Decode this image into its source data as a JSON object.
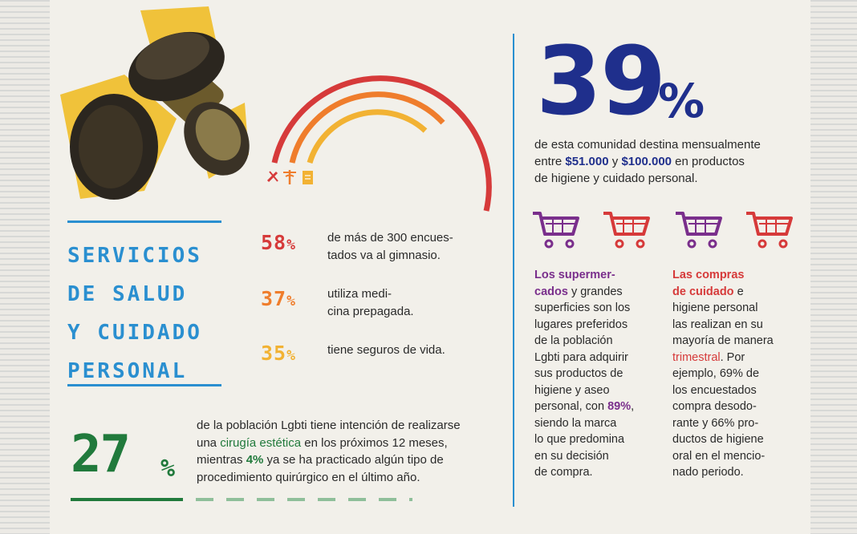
{
  "left": {
    "heading_lines": [
      "SERVICIOS",
      "DE SALUD",
      "Y CUIDADO",
      "PERSONAL"
    ],
    "stats": [
      {
        "pct": "58",
        "sign": "%",
        "line1": "de más de 300 encues-",
        "line2": "tados va al gimnasio.",
        "color": "#d63a3a"
      },
      {
        "pct": "37",
        "sign": "%",
        "line1": "utiliza medi-",
        "line2": "cina prepagada.",
        "color": "#ef7d2c"
      },
      {
        "pct": "35",
        "sign": "%",
        "line1": "tiene seguros de vida.",
        "line2": "",
        "color": "#f2b233"
      }
    ],
    "arc_colors": [
      "#d63a3a",
      "#ef7d2c",
      "#f2b233"
    ],
    "icons": [
      "wrench-icon",
      "caduceus-icon",
      "document-icon"
    ]
  },
  "cirugia": {
    "pct": "27",
    "sign": "%",
    "line1": "de la población Lgbti tiene intención de realizarse",
    "line2_pre": "una ",
    "line2_hl": "cirugía estética",
    "line2_post": " en los próximos 12 meses,",
    "line3_pre": "mientras ",
    "line3_hl": "4%",
    "line3_post": " ya se ha practicado algún tipo de",
    "line4": "procedimiento quirúrgico en el último año."
  },
  "right": {
    "pct": "39",
    "sign": "%",
    "line1": "de esta comunidad destina mensualmente",
    "line2_pre": "entre ",
    "amount1": "$51.000",
    "line2_mid": " y ",
    "amount2": "$100.000",
    "line2_post": " en productos",
    "line3": "de higiene y cuidado personal.",
    "cart_colors": [
      "#7a2f8c",
      "#d63a3a",
      "#7a2f8c",
      "#d63a3a"
    ],
    "col1": {
      "hl1": "Los supermer-",
      "hl2": "cados",
      "l2_post": " y grandes",
      "lines_a": [
        "superficies son los",
        "lugares preferidos",
        "de la población",
        "Lgbti para adquirir",
        "sus productos de",
        "higiene y aseo"
      ],
      "l9_pre": "personal, con ",
      "l9_hl": "89%",
      "l9_post": ",",
      "lines_b": [
        "siendo la marca",
        "lo que predomina",
        "en su decisión",
        "de compra."
      ]
    },
    "col2": {
      "hl1": "Las compras",
      "hl2": "de cuidado",
      "l2_post": " e",
      "lines_a": [
        "higiene personal",
        "las realizan en su",
        "mayoría de manera"
      ],
      "l6_hl": "trimestral",
      "l6_post": ". Por",
      "lines_b": [
        "ejemplo, 69% de",
        "los encuestados",
        "compra desodo-",
        "rante y 66% pro-",
        "ductos de higiene",
        "oral en el mencio-",
        "nado periodo."
      ]
    }
  }
}
